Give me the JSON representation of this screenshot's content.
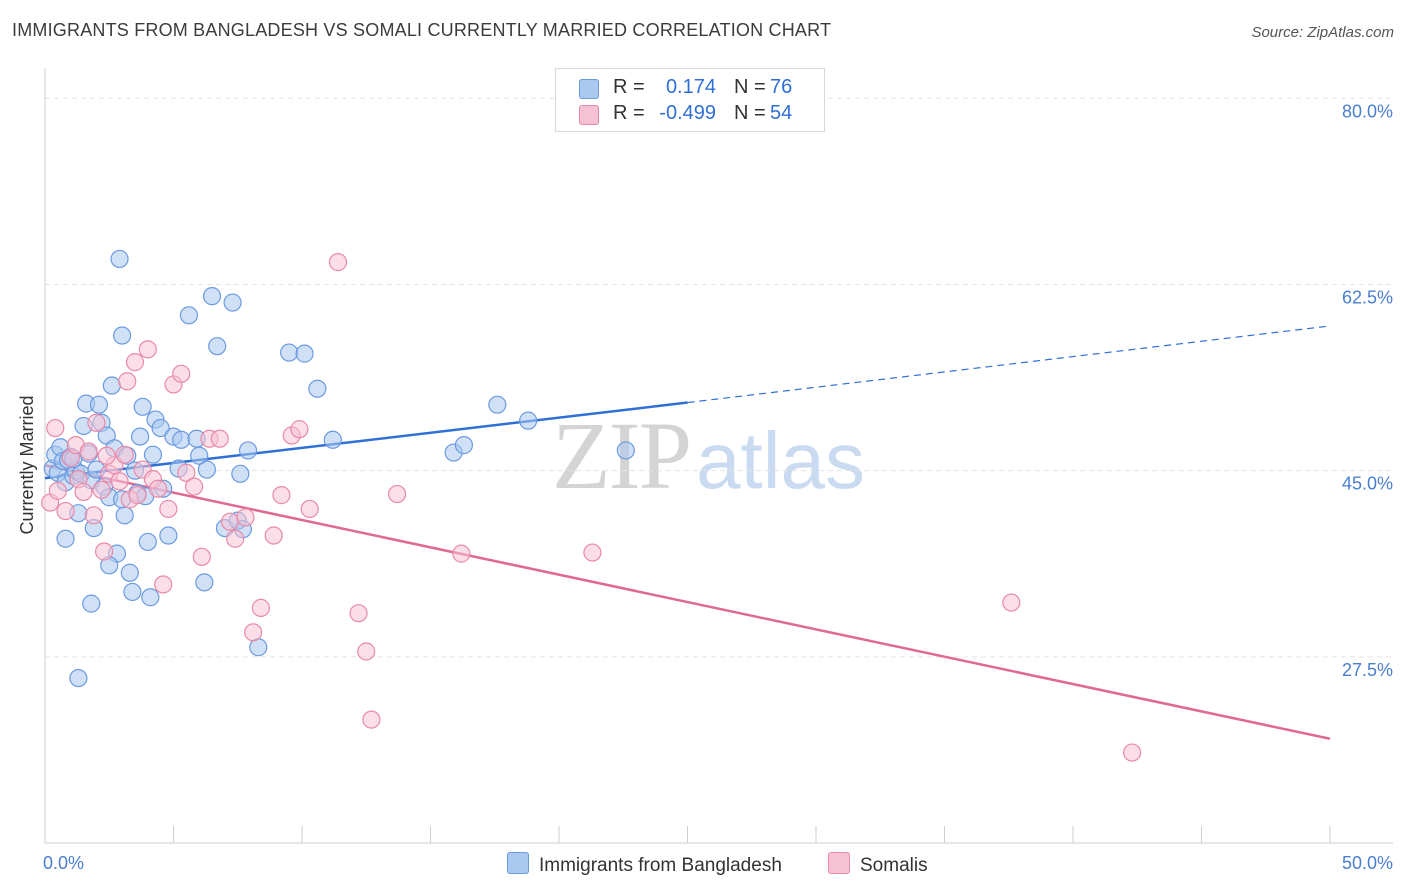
{
  "title": "IMMIGRANTS FROM BANGLADESH VS SOMALI CURRENTLY MARRIED CORRELATION CHART",
  "source": "Source: ZipAtlas.com",
  "watermark": {
    "zip": "ZIP",
    "atlas": "atlas"
  },
  "legend": {
    "rows": [
      {
        "r_label": "R =",
        "r_value": "0.174",
        "n_label": "N =",
        "n_value": "76",
        "color": "#aac8f0",
        "border": "#6b9ae0"
      },
      {
        "r_label": "R =",
        "r_value": "-0.499",
        "n_label": "N =",
        "n_value": "54",
        "color": "#f7c3d4",
        "border": "#e88aa8"
      }
    ]
  },
  "bottom_legend": [
    {
      "label": "Immigrants from Bangladesh",
      "color": "#aac8f0",
      "border": "#6b9ae0"
    },
    {
      "label": "Somalis",
      "color": "#f7c3d4",
      "border": "#e88aa8"
    }
  ],
  "chart_data": {
    "type": "scatter",
    "title": "IMMIGRANTS FROM BANGLADESH VS SOMALI CURRENTLY MARRIED CORRELATION CHART",
    "xlabel": "",
    "ylabel": "Currently Married",
    "xlim": [
      0,
      50
    ],
    "ylim": [
      10,
      82
    ],
    "x_tick_labels": [
      "0.0%",
      "50.0%"
    ],
    "y_ticks": [
      27.5,
      45.0,
      62.5,
      80.0
    ],
    "y_tick_labels": [
      "27.5%",
      "45.0%",
      "62.5%",
      "80.0%"
    ],
    "grid": "horizontal dashed",
    "series": [
      {
        "name": "Immigrants from Bangladesh",
        "color": "#6b9ae0",
        "fill": "#aac8f0",
        "trend": {
          "x_start": 0,
          "y_start": 44.3,
          "x_solid_end": 25,
          "y_solid_end": 51.4,
          "x_end": 50,
          "y_end": 58.6
        },
        "points": [
          [
            0.3,
            45.2
          ],
          [
            0.4,
            46.5
          ],
          [
            0.5,
            44.8
          ],
          [
            0.6,
            47.2
          ],
          [
            0.7,
            45.9
          ],
          [
            0.8,
            43.9
          ],
          [
            0.9,
            46.0
          ],
          [
            1.0,
            46.3
          ],
          [
            1.1,
            44.5
          ],
          [
            1.2,
            45.0
          ],
          [
            1.3,
            41.0
          ],
          [
            1.4,
            44.7
          ],
          [
            1.5,
            49.2
          ],
          [
            1.6,
            51.3
          ],
          [
            1.7,
            46.6
          ],
          [
            1.8,
            44.1
          ],
          [
            1.9,
            39.6
          ],
          [
            2.0,
            45.1
          ],
          [
            2.1,
            51.2
          ],
          [
            2.2,
            49.5
          ],
          [
            2.3,
            43.5
          ],
          [
            2.4,
            48.3
          ],
          [
            2.5,
            42.5
          ],
          [
            2.6,
            53.0
          ],
          [
            2.7,
            47.1
          ],
          [
            2.8,
            37.2
          ],
          [
            2.9,
            64.9
          ],
          [
            3.0,
            57.7
          ],
          [
            3.1,
            40.8
          ],
          [
            3.2,
            46.4
          ],
          [
            3.3,
            35.4
          ],
          [
            3.4,
            33.6
          ],
          [
            3.5,
            45.0
          ],
          [
            3.6,
            42.9
          ],
          [
            3.7,
            48.2
          ],
          [
            3.8,
            51.0
          ],
          [
            3.9,
            42.6
          ],
          [
            4.0,
            38.3
          ],
          [
            4.1,
            33.1
          ],
          [
            4.2,
            46.5
          ],
          [
            4.3,
            49.8
          ],
          [
            4.5,
            49.0
          ],
          [
            4.6,
            43.3
          ],
          [
            4.8,
            38.9
          ],
          [
            5.0,
            48.2
          ],
          [
            5.2,
            45.2
          ],
          [
            5.3,
            47.9
          ],
          [
            5.6,
            59.6
          ],
          [
            5.9,
            48.0
          ],
          [
            6.0,
            46.4
          ],
          [
            6.2,
            34.5
          ],
          [
            6.5,
            61.4
          ],
          [
            6.7,
            56.7
          ],
          [
            7.0,
            39.6
          ],
          [
            7.3,
            60.8
          ],
          [
            7.5,
            40.3
          ],
          [
            7.6,
            44.7
          ],
          [
            7.7,
            39.5
          ],
          [
            7.9,
            46.9
          ],
          [
            8.3,
            28.4
          ],
          [
            9.5,
            56.1
          ],
          [
            10.1,
            56.0
          ],
          [
            10.6,
            52.7
          ],
          [
            11.2,
            47.9
          ],
          [
            1.3,
            25.5
          ],
          [
            1.8,
            32.5
          ],
          [
            2.5,
            36.1
          ],
          [
            3.0,
            42.3
          ],
          [
            6.3,
            45.1
          ],
          [
            15.9,
            46.7
          ],
          [
            16.3,
            47.4
          ],
          [
            17.6,
            51.2
          ],
          [
            18.8,
            49.7
          ],
          [
            22.6,
            46.9
          ],
          [
            0.8,
            38.6
          ],
          [
            1.1,
            46.1
          ]
        ]
      },
      {
        "name": "Somalis",
        "color": "#e88aa8",
        "fill": "#f7c3d4",
        "trend": {
          "x_start": 0,
          "y_start": 45.5,
          "x_end": 50,
          "y_end": 19.8
        },
        "points": [
          [
            0.2,
            42.0
          ],
          [
            0.5,
            43.1
          ],
          [
            0.8,
            41.2
          ],
          [
            1.0,
            46.2
          ],
          [
            1.2,
            47.4
          ],
          [
            1.3,
            44.2
          ],
          [
            1.5,
            43.0
          ],
          [
            1.7,
            46.8
          ],
          [
            1.9,
            40.8
          ],
          [
            2.0,
            49.5
          ],
          [
            2.2,
            43.2
          ],
          [
            2.3,
            37.4
          ],
          [
            2.5,
            44.7
          ],
          [
            2.7,
            45.5
          ],
          [
            2.9,
            44.0
          ],
          [
            3.1,
            46.5
          ],
          [
            3.2,
            53.4
          ],
          [
            3.3,
            42.3
          ],
          [
            3.5,
            55.2
          ],
          [
            3.6,
            42.7
          ],
          [
            3.8,
            45.1
          ],
          [
            4.0,
            56.4
          ],
          [
            4.2,
            44.2
          ],
          [
            4.4,
            43.3
          ],
          [
            4.6,
            34.3
          ],
          [
            4.8,
            41.4
          ],
          [
            5.0,
            53.1
          ],
          [
            5.3,
            54.1
          ],
          [
            5.5,
            44.8
          ],
          [
            5.8,
            43.5
          ],
          [
            6.1,
            36.9
          ],
          [
            6.4,
            48.0
          ],
          [
            6.8,
            48.0
          ],
          [
            7.2,
            40.2
          ],
          [
            7.4,
            38.6
          ],
          [
            7.8,
            40.6
          ],
          [
            8.1,
            29.8
          ],
          [
            8.4,
            32.1
          ],
          [
            8.9,
            38.9
          ],
          [
            9.2,
            42.7
          ],
          [
            9.6,
            48.3
          ],
          [
            9.9,
            48.9
          ],
          [
            10.3,
            41.4
          ],
          [
            11.4,
            64.6
          ],
          [
            12.2,
            31.6
          ],
          [
            12.5,
            28.0
          ],
          [
            12.7,
            21.6
          ],
          [
            13.7,
            42.8
          ],
          [
            16.2,
            37.2
          ],
          [
            21.3,
            37.3
          ],
          [
            37.6,
            32.6
          ],
          [
            42.3,
            18.5
          ],
          [
            0.4,
            49.0
          ],
          [
            2.4,
            46.4
          ]
        ]
      }
    ]
  }
}
